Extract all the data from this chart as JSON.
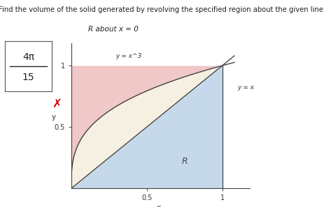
{
  "title": "Find the volume of the solid generated by revolving the specified region about the given line.",
  "subtitle": "R about x = 0",
  "answer_numerator": "4π",
  "answer_denominator": "15",
  "xlabel": "x",
  "ylabel": "y",
  "xlim": [
    0,
    1.18
  ],
  "ylim": [
    0,
    1.18
  ],
  "xticks": [
    0.5,
    1
  ],
  "yticks": [
    0.5,
    1
  ],
  "region_label": "R",
  "curve1_label": "y = x^3",
  "curve2_label": "y = x",
  "pink_color": "#f0c8c8",
  "blue_color": "#c5d9ea",
  "cream_color": "#f5f0e2",
  "background_color": "#ffffff",
  "wrong_mark_color": "#cc0000",
  "box_bg": "#ffffff"
}
